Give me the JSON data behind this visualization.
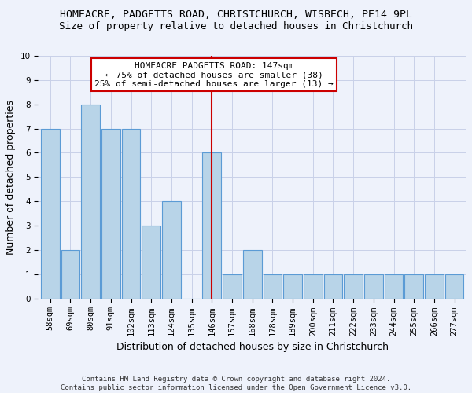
{
  "title": "HOMEACRE, PADGETTS ROAD, CHRISTCHURCH, WISBECH, PE14 9PL",
  "subtitle": "Size of property relative to detached houses in Christchurch",
  "xlabel": "Distribution of detached houses by size in Christchurch",
  "ylabel": "Number of detached properties",
  "categories": [
    "58sqm",
    "69sqm",
    "80sqm",
    "91sqm",
    "102sqm",
    "113sqm",
    "124sqm",
    "135sqm",
    "146sqm",
    "157sqm",
    "168sqm",
    "178sqm",
    "189sqm",
    "200sqm",
    "211sqm",
    "222sqm",
    "233sqm",
    "244sqm",
    "255sqm",
    "266sqm",
    "277sqm"
  ],
  "values": [
    7,
    2,
    8,
    7,
    7,
    3,
    4,
    0,
    6,
    1,
    2,
    1,
    1,
    1,
    1,
    1,
    1,
    1,
    1,
    1,
    1
  ],
  "bar_color": "#b8d4e8",
  "bar_edge_color": "#5b9bd5",
  "vline_x": 8,
  "vline_color": "#cc0000",
  "annotation_text": "HOMEACRE PADGETTS ROAD: 147sqm\n← 75% of detached houses are smaller (38)\n25% of semi-detached houses are larger (13) →",
  "annotation_box_color": "#ffffff",
  "annotation_box_edge": "#cc0000",
  "ylim": [
    0,
    10
  ],
  "yticks": [
    0,
    1,
    2,
    3,
    4,
    5,
    6,
    7,
    8,
    9,
    10
  ],
  "footer": "Contains HM Land Registry data © Crown copyright and database right 2024.\nContains public sector information licensed under the Open Government Licence v3.0.",
  "title_fontsize": 9.5,
  "subtitle_fontsize": 9,
  "xlabel_fontsize": 9,
  "ylabel_fontsize": 9,
  "tick_fontsize": 7.5,
  "annotation_fontsize": 8,
  "footer_fontsize": 6.5,
  "background_color": "#eef2fb",
  "grid_color": "#c8d0e8"
}
